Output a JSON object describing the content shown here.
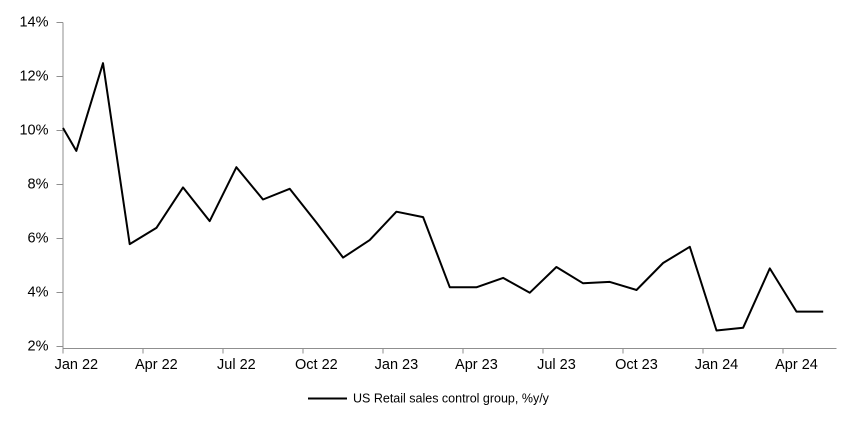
{
  "chart_data": {
    "type": "line",
    "title": "",
    "xlabel": "",
    "ylabel": "",
    "categories": [
      "Jan 22",
      "Feb 22",
      "Mar 22",
      "Apr 22",
      "May 22",
      "Jun 22",
      "Jul 22",
      "Aug 22",
      "Sep 22",
      "Oct 22",
      "Nov 22",
      "Dec 22",
      "Jan 23",
      "Feb 23",
      "Mar 23",
      "Apr 23",
      "May 23",
      "Jun 23",
      "Jul 23",
      "Aug 23",
      "Sep 23",
      "Oct 23",
      "Nov 23",
      "Dec 23",
      "Jan 24",
      "Feb 24",
      "Mar 24",
      "Apr 24",
      "May 24"
    ],
    "series": [
      {
        "name": "US Retail sales control group, %y/y",
        "values": [
          9.25,
          12.5,
          5.8,
          6.4,
          7.9,
          6.65,
          8.65,
          7.45,
          7.85,
          6.6,
          5.3,
          5.95,
          7.0,
          6.8,
          4.2,
          4.2,
          4.55,
          4.0,
          4.95,
          4.35,
          4.4,
          4.1,
          5.1,
          5.7,
          2.6,
          2.7,
          4.9,
          3.3,
          3.3
        ]
      }
    ],
    "left_edge_clipped_value": 10.1,
    "ylim": [
      2,
      14
    ],
    "ytick_step": 2,
    "ytick_labels": [
      "2%",
      "4%",
      "6%",
      "8%",
      "10%",
      "12%",
      "14%"
    ],
    "xtick_labels": [
      "Jan 22",
      "Apr 22",
      "Jul 22",
      "Oct 22",
      "Jan 23",
      "Apr 23",
      "Jul 23",
      "Oct 23",
      "Jan 24",
      "Apr 24"
    ],
    "xtick_every_n_categories": 3,
    "grid": false,
    "legend": {
      "position": "bottom-center",
      "label": "US Retail sales control group, %y/y"
    },
    "colors": {
      "line": "#000000",
      "axis": "#8f8f8f",
      "text": "#000000",
      "background": "#ffffff"
    }
  }
}
